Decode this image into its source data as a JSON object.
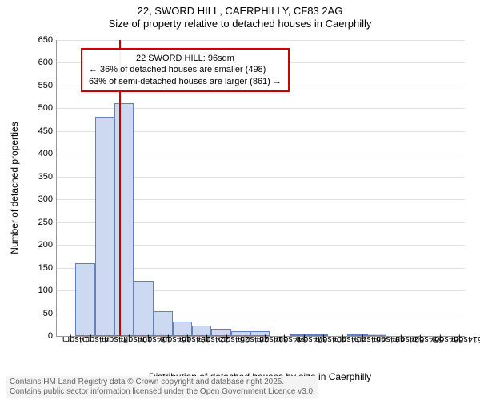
{
  "title": "22, SWORD HILL, CAERPHILLY, CF83 2AG",
  "subtitle": "Size of property relative to detached houses in Caerphilly",
  "y_axis_label": "Number of detached properties",
  "x_axis_label": "Distribution of detached houses by size in Caerphilly",
  "chart": {
    "type": "histogram",
    "ylim": [
      0,
      650
    ],
    "ytick_step": 50,
    "yticks": [
      0,
      50,
      100,
      150,
      200,
      250,
      300,
      350,
      400,
      450,
      500,
      550,
      600,
      650
    ],
    "x_labels": [
      "14sqm",
      "44sqm",
      "74sqm",
      "104sqm",
      "134sqm",
      "164sqm",
      "194sqm",
      "224sqm",
      "254sqm",
      "284sqm",
      "314sqm",
      "344sqm",
      "374sqm",
      "404sqm",
      "434sqm",
      "464sqm",
      "494sqm",
      "524sqm",
      "554sqm",
      "584sqm",
      "614sqm"
    ],
    "bar_fill": "#cdd9f0",
    "bar_stroke": "#6080c0",
    "grid_color": "#e0e0e0",
    "background_color": "#ffffff",
    "bars": [
      {
        "x_start": 29,
        "x_end": 59,
        "value": 160
      },
      {
        "x_start": 59,
        "x_end": 89,
        "value": 482
      },
      {
        "x_start": 89,
        "x_end": 119,
        "value": 512
      },
      {
        "x_start": 119,
        "x_end": 149,
        "value": 122
      },
      {
        "x_start": 149,
        "x_end": 179,
        "value": 55
      },
      {
        "x_start": 179,
        "x_end": 209,
        "value": 32
      },
      {
        "x_start": 209,
        "x_end": 239,
        "value": 22
      },
      {
        "x_start": 239,
        "x_end": 269,
        "value": 15
      },
      {
        "x_start": 269,
        "x_end": 299,
        "value": 10
      },
      {
        "x_start": 299,
        "x_end": 329,
        "value": 10
      },
      {
        "x_start": 359,
        "x_end": 389,
        "value": 3
      },
      {
        "x_start": 389,
        "x_end": 419,
        "value": 3
      },
      {
        "x_start": 449,
        "x_end": 479,
        "value": 3
      },
      {
        "x_start": 479,
        "x_end": 509,
        "value": 6
      }
    ],
    "x_domain": [
      0,
      630
    ],
    "marker": {
      "x_value": 96,
      "color": "#cc0000"
    },
    "annotation": {
      "line1": "22 SWORD HILL: 96sqm",
      "line2": "← 36% of detached houses are smaller (498)",
      "line3": "63% of semi-detached houses are larger (861) →",
      "border_color": "#cc0000"
    }
  },
  "footer_line1": "Contains HM Land Registry data © Crown copyright and database right 2025.",
  "footer_line2": "Contains public sector information licensed under the Open Government Licence v3.0."
}
